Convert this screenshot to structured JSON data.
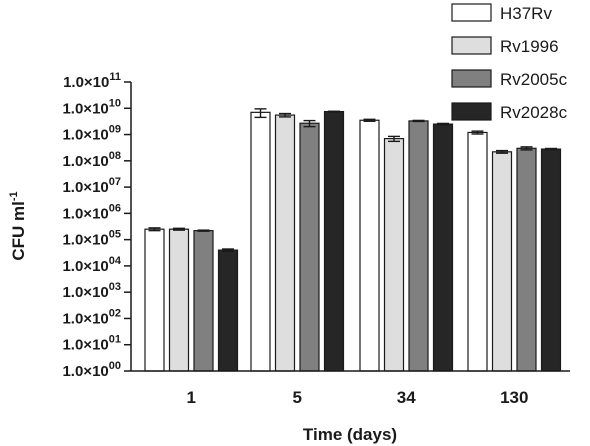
{
  "chart_data": {
    "type": "bar",
    "xlabel": "Time (days)",
    "ylabel": "CFU ml",
    "ylabel_superscript": "-1",
    "yscale": "log",
    "ylim": [
      1,
      100000000000
    ],
    "categories": [
      "1",
      "5",
      "34",
      "130"
    ],
    "tick_mantissa": "1.0×10",
    "y_tick_exponents": [
      "00",
      "01",
      "02",
      "03",
      "04",
      "05",
      "06",
      "07",
      "08",
      "09",
      "10",
      "11"
    ],
    "legend_position": "top-right",
    "series": [
      {
        "name": "H37Rv",
        "color": "#ffffff",
        "values": [
          250000,
          7000000000,
          3500000000,
          1200000000
        ],
        "errors": [
          30000,
          2500000000,
          300000000,
          150000000
        ]
      },
      {
        "name": "Rv1996",
        "color": "#dedede",
        "values": [
          250000,
          5500000000,
          700000000,
          220000000
        ],
        "errors": [
          20000,
          800000000,
          150000000,
          25000000
        ]
      },
      {
        "name": "Rv2005c",
        "color": "#808080",
        "values": [
          220000,
          2700000000,
          3300000000,
          300000000
        ],
        "errors": [
          10000,
          700000000,
          150000000,
          40000000
        ]
      },
      {
        "name": "Rv2028c",
        "color": "#262626",
        "values": [
          40000,
          7500000000,
          2500000000,
          280000000
        ],
        "errors": [
          4000,
          200000000,
          150000000,
          15000000
        ]
      }
    ]
  }
}
